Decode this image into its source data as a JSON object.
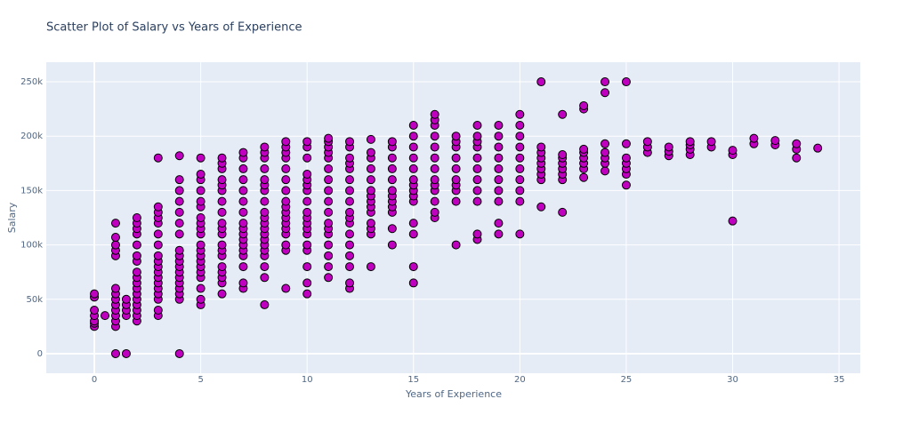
{
  "chart_data": {
    "type": "scatter",
    "title": "Scatter Plot of Salary vs Years of Experience",
    "x_label": "Years of Experience",
    "y_label": "Salary",
    "color": "#bf00bf",
    "grid": true,
    "xlim": [
      -2.26,
      36.0
    ],
    "ylim": [
      -18000,
      268000
    ],
    "xticks": [
      0,
      5,
      10,
      15,
      20,
      25,
      30,
      35
    ],
    "yticks": [
      0,
      {
        "value": 50000,
        "label": "50k"
      },
      {
        "value": 100000,
        "label": "100k"
      },
      {
        "value": 150000,
        "label": "150k"
      },
      {
        "value": 200000,
        "label": "200k"
      },
      {
        "value": 250000,
        "label": "250k"
      }
    ],
    "x": [
      0,
      0,
      0,
      0,
      0,
      0,
      0,
      0.5,
      1,
      1,
      1,
      1,
      1,
      1,
      1,
      1,
      1,
      1,
      1,
      1,
      1,
      1,
      1.5,
      1.5,
      1.5,
      1.5,
      1.5,
      2,
      2,
      2,
      2,
      2,
      2,
      2,
      2,
      2,
      2,
      2,
      2,
      2,
      2,
      2,
      2,
      2,
      3,
      3,
      3,
      3,
      3,
      3,
      3,
      3,
      3,
      3,
      3,
      3,
      3,
      3,
      3,
      3,
      3,
      3,
      4,
      4,
      4,
      4,
      4,
      4,
      4,
      4,
      4,
      4,
      4,
      4,
      4,
      4,
      4,
      4,
      4,
      4,
      5,
      5,
      5,
      5,
      5,
      5,
      5,
      5,
      5,
      5,
      5,
      5,
      5,
      5,
      5,
      5,
      5,
      5,
      5,
      5,
      6,
      6,
      6,
      6,
      6,
      6,
      6,
      6,
      6,
      6,
      6,
      6,
      6,
      6,
      6,
      6,
      6,
      6,
      6,
      7,
      7,
      7,
      7,
      7,
      7,
      7,
      7,
      7,
      7,
      7,
      7,
      7,
      7,
      7,
      7,
      7,
      8,
      8,
      8,
      8,
      8,
      8,
      8,
      8,
      8,
      8,
      8,
      8,
      8,
      8,
      8,
      8,
      8,
      8,
      8,
      8,
      9,
      9,
      9,
      9,
      9,
      9,
      9,
      9,
      9,
      9,
      9,
      9,
      9,
      9,
      9,
      9,
      9,
      10,
      10,
      10,
      10,
      10,
      10,
      10,
      10,
      10,
      10,
      10,
      10,
      10,
      10,
      10,
      10,
      10,
      10,
      11,
      11,
      11,
      11,
      11,
      11,
      11,
      11,
      11,
      11,
      11,
      11,
      11,
      11,
      11,
      11,
      11,
      12,
      12,
      12,
      12,
      12,
      12,
      12,
      12,
      12,
      12,
      12,
      12,
      12,
      12,
      12,
      12,
      12,
      13,
      13,
      13,
      13,
      13,
      13,
      13,
      13,
      13,
      13,
      13,
      13,
      13,
      13,
      14,
      14,
      14,
      14,
      14,
      14,
      14,
      14,
      14,
      14,
      14,
      14,
      15,
      15,
      15,
      15,
      15,
      15,
      15,
      15,
      15,
      15,
      15,
      15,
      15,
      15,
      16,
      16,
      16,
      16,
      16,
      16,
      16,
      16,
      16,
      16,
      16,
      16,
      16,
      17,
      17,
      17,
      17,
      17,
      17,
      17,
      17,
      17,
      17,
      18,
      18,
      18,
      18,
      18,
      18,
      18,
      18,
      18,
      18,
      18,
      19,
      19,
      19,
      19,
      19,
      19,
      19,
      19,
      19,
      19,
      20,
      20,
      20,
      20,
      20,
      20,
      20,
      20,
      20,
      20,
      21,
      21,
      21,
      21,
      21,
      21,
      21,
      21,
      21,
      22,
      22,
      22,
      22,
      22,
      22,
      22,
      22,
      23,
      23,
      23,
      23,
      23,
      23,
      23,
      23,
      24,
      24,
      24,
      24,
      24,
      24,
      24,
      25,
      25,
      25,
      25,
      25,
      25,
      25,
      26,
      26,
      26,
      27,
      27,
      27,
      28,
      28,
      28,
      28,
      29,
      29,
      30,
      30,
      30,
      31,
      31,
      32,
      32,
      33,
      33,
      33,
      34
    ],
    "values": [
      25000,
      28000,
      30000,
      35000,
      40000,
      52000,
      55000,
      35000,
      0,
      25000,
      30000,
      35000,
      40000,
      45000,
      50000,
      55000,
      60000,
      90000,
      95000,
      100000,
      107000,
      120000,
      0,
      35000,
      40000,
      45000,
      50000,
      30000,
      35000,
      40000,
      45000,
      50000,
      55000,
      60000,
      65000,
      70000,
      75000,
      85000,
      90000,
      100000,
      110000,
      115000,
      120000,
      125000,
      35000,
      40000,
      50000,
      55000,
      60000,
      65000,
      70000,
      75000,
      80000,
      85000,
      90000,
      100000,
      110000,
      120000,
      125000,
      130000,
      135000,
      180000,
      0,
      50000,
      55000,
      60000,
      65000,
      70000,
      75000,
      80000,
      85000,
      90000,
      95000,
      110000,
      120000,
      130000,
      140000,
      150000,
      160000,
      182000,
      45000,
      50000,
      60000,
      70000,
      75000,
      80000,
      85000,
      90000,
      95000,
      100000,
      110000,
      115000,
      120000,
      125000,
      135000,
      140000,
      150000,
      160000,
      165000,
      180000,
      55000,
      65000,
      70000,
      75000,
      80000,
      90000,
      95000,
      100000,
      110000,
      115000,
      120000,
      130000,
      140000,
      150000,
      155000,
      160000,
      170000,
      175000,
      180000,
      60000,
      65000,
      80000,
      90000,
      95000,
      100000,
      105000,
      110000,
      115000,
      120000,
      130000,
      140000,
      150000,
      160000,
      170000,
      180000,
      185000,
      45000,
      70000,
      80000,
      90000,
      95000,
      100000,
      105000,
      110000,
      115000,
      120000,
      125000,
      130000,
      140000,
      150000,
      155000,
      160000,
      170000,
      180000,
      185000,
      190000,
      60000,
      95000,
      100000,
      110000,
      115000,
      120000,
      125000,
      130000,
      135000,
      140000,
      150000,
      160000,
      170000,
      180000,
      185000,
      190000,
      195000,
      55000,
      65000,
      80000,
      95000,
      100000,
      110000,
      115000,
      120000,
      125000,
      130000,
      140000,
      150000,
      155000,
      160000,
      165000,
      180000,
      190000,
      195000,
      70000,
      80000,
      90000,
      100000,
      110000,
      115000,
      120000,
      130000,
      140000,
      150000,
      160000,
      170000,
      180000,
      185000,
      190000,
      195000,
      198000,
      60000,
      65000,
      80000,
      90000,
      100000,
      110000,
      120000,
      125000,
      130000,
      140000,
      150000,
      160000,
      170000,
      175000,
      180000,
      190000,
      195000,
      80000,
      110000,
      115000,
      120000,
      130000,
      135000,
      140000,
      145000,
      150000,
      160000,
      170000,
      180000,
      185000,
      197000,
      100000,
      115000,
      130000,
      135000,
      140000,
      145000,
      150000,
      160000,
      170000,
      180000,
      190000,
      195000,
      65000,
      80000,
      110000,
      120000,
      140000,
      145000,
      150000,
      155000,
      160000,
      170000,
      180000,
      190000,
      200000,
      210000,
      125000,
      130000,
      140000,
      150000,
      155000,
      160000,
      170000,
      180000,
      190000,
      200000,
      210000,
      215000,
      220000,
      100000,
      140000,
      150000,
      155000,
      160000,
      170000,
      180000,
      190000,
      195000,
      200000,
      105000,
      110000,
      140000,
      150000,
      160000,
      170000,
      180000,
      190000,
      195000,
      200000,
      210000,
      110000,
      120000,
      140000,
      150000,
      160000,
      170000,
      180000,
      190000,
      200000,
      210000,
      110000,
      140000,
      150000,
      160000,
      170000,
      180000,
      190000,
      200000,
      210000,
      220000,
      135000,
      160000,
      165000,
      170000,
      175000,
      180000,
      185000,
      190000,
      250000,
      130000,
      160000,
      165000,
      170000,
      175000,
      180000,
      183000,
      220000,
      162000,
      170000,
      175000,
      180000,
      185000,
      188000,
      225000,
      228000,
      168000,
      175000,
      180000,
      185000,
      193000,
      240000,
      250000,
      155000,
      165000,
      170000,
      175000,
      180000,
      193000,
      250000,
      185000,
      190000,
      195000,
      182000,
      186000,
      190000,
      183000,
      188000,
      192000,
      195000,
      190000,
      195000,
      122000,
      183000,
      187000,
      193000,
      198000,
      192000,
      196000,
      180000,
      188000,
      193000,
      189000
    ]
  }
}
